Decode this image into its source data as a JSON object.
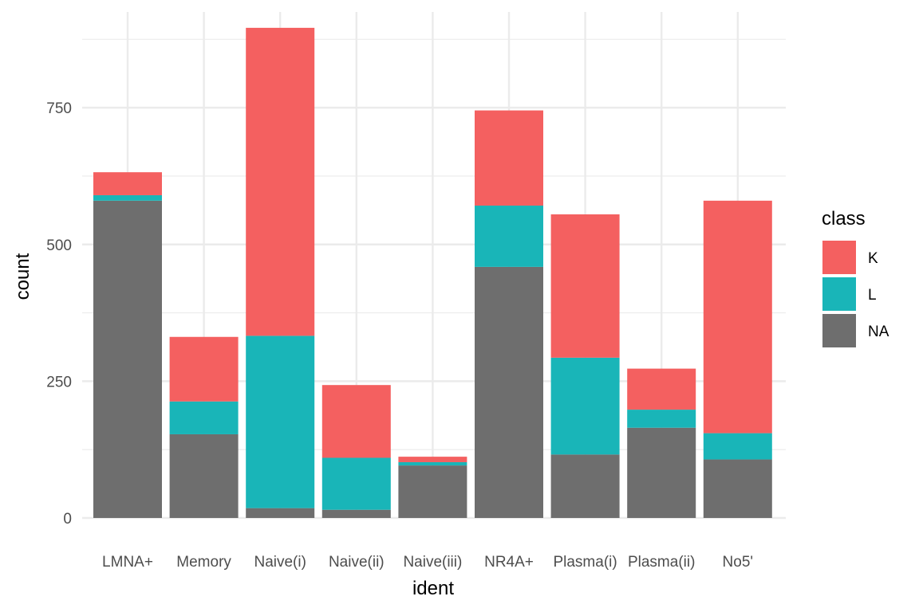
{
  "chart_data": {
    "type": "bar",
    "stacked": true,
    "categories": [
      "LMNA+",
      "Memory",
      "Naive(i)",
      "Naive(ii)",
      "Naive(iii)",
      "NR4A+",
      "Plasma(i)",
      "Plasma(ii)",
      "No5'"
    ],
    "series": [
      {
        "name": "NA",
        "color": "#6e6e6e",
        "values": [
          580,
          153,
          18,
          15,
          96,
          459,
          116,
          165,
          107
        ]
      },
      {
        "name": "L",
        "color": "#19b5b8",
        "values": [
          10,
          60,
          315,
          95,
          6,
          112,
          177,
          33,
          48
        ]
      },
      {
        "name": "K",
        "color": "#f46060",
        "values": [
          42,
          118,
          563,
          133,
          10,
          174,
          262,
          75,
          425
        ]
      }
    ],
    "xlabel": "ident",
    "ylabel": "count",
    "ylim": [
      0,
      925
    ],
    "yticks": [
      0,
      250,
      500,
      750
    ],
    "yminor": [
      125,
      375,
      625,
      875
    ],
    "grid": true,
    "legend": {
      "title": "class",
      "placement": "right",
      "order": [
        "K",
        "L",
        "NA"
      ]
    }
  }
}
